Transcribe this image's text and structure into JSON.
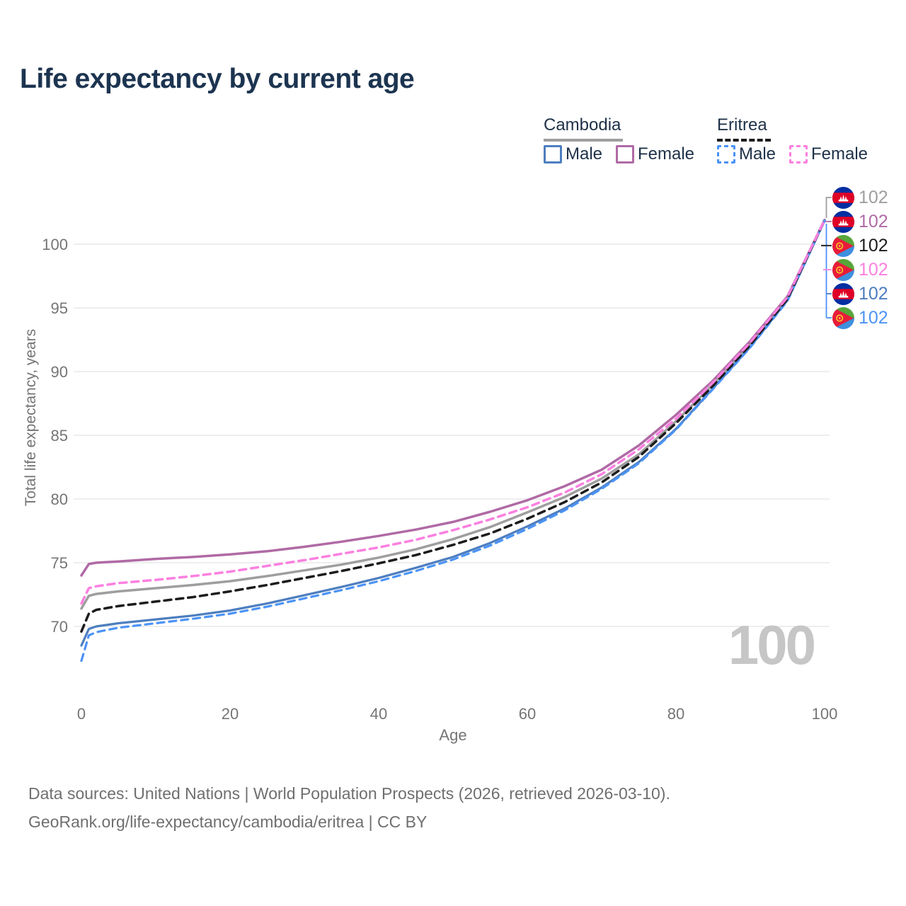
{
  "title": "Life expectancy by current age",
  "legend": {
    "groups": [
      {
        "label": "Cambodia",
        "line_style": "solid",
        "underline_color": "#9e9e9e",
        "items": [
          {
            "label": "Male",
            "color": "#4d7ebf"
          },
          {
            "label": "Female",
            "color": "#b06aa5"
          }
        ]
      },
      {
        "label": "Eritrea",
        "line_style": "dashed",
        "underline_color": "#1c1c1c",
        "items": [
          {
            "label": "Male",
            "color": "#4b93f5"
          },
          {
            "label": "Female",
            "color": "#fb80e0"
          }
        ]
      }
    ]
  },
  "watermark": "100",
  "end_labels": [
    {
      "country": "Cambodia",
      "flag": "cambodia",
      "value": "102",
      "color": "#9e9e9e"
    },
    {
      "country": "Cambodia",
      "flag": "cambodia",
      "value": "102",
      "color": "#b06aa5"
    },
    {
      "country": "Eritrea",
      "flag": "eritrea",
      "value": "102",
      "color": "#1c1c1c"
    },
    {
      "country": "Eritrea",
      "flag": "eritrea",
      "value": "102",
      "color": "#fb80e0"
    },
    {
      "country": "Cambodia",
      "flag": "cambodia",
      "value": "102",
      "color": "#4d7ebf"
    },
    {
      "country": "Eritrea",
      "flag": "eritrea",
      "value": "102",
      "color": "#4b93f5"
    }
  ],
  "footer": {
    "line1": "Data sources: United Nations | World Population Prospects (2026, retrieved 2026-03-10).",
    "line2": "GeoRank.org/life-expectancy/cambodia/eritrea | CC BY"
  },
  "chart_data": {
    "type": "line",
    "title": "Life expectancy by current age",
    "xlabel": "Age",
    "ylabel": "Total life expectancy, years",
    "xlim": [
      0,
      100
    ],
    "ylim": [
      66.5,
      103.5
    ],
    "x_ticks": [
      0,
      20,
      40,
      60,
      80,
      100
    ],
    "y_ticks": [
      70,
      75,
      80,
      85,
      90,
      95,
      100
    ],
    "grid": "horizontal",
    "legend_position": "top-right",
    "x": [
      0,
      1,
      2,
      5,
      10,
      15,
      20,
      25,
      30,
      35,
      40,
      45,
      50,
      55,
      60,
      65,
      70,
      75,
      80,
      85,
      90,
      95,
      100
    ],
    "series": [
      {
        "name": "Cambodia Both sexes",
        "country": "Cambodia",
        "sex": "Both",
        "dash": false,
        "color": "#9e9e9e",
        "width": 3.5,
        "values": [
          71.4,
          72.4,
          72.55,
          72.75,
          73.0,
          73.25,
          73.55,
          73.95,
          74.4,
          74.85,
          75.4,
          76.05,
          76.85,
          77.8,
          78.95,
          80.15,
          81.6,
          83.5,
          86.1,
          89.0,
          92.2,
          95.75,
          101.9
        ]
      },
      {
        "name": "Cambodia Male",
        "country": "Cambodia",
        "sex": "Male",
        "dash": false,
        "color": "#4d7ebf",
        "width": 3.2,
        "values": [
          68.5,
          69.8,
          70.0,
          70.25,
          70.55,
          70.85,
          71.25,
          71.8,
          72.45,
          73.1,
          73.8,
          74.6,
          75.45,
          76.55,
          77.85,
          79.25,
          80.9,
          82.9,
          85.5,
          88.7,
          91.95,
          95.6,
          101.85
        ]
      },
      {
        "name": "Cambodia Female",
        "country": "Cambodia",
        "sex": "Female",
        "dash": false,
        "color": "#b06aa5",
        "width": 3.5,
        "values": [
          74.0,
          74.9,
          75.0,
          75.1,
          75.3,
          75.45,
          75.65,
          75.9,
          76.25,
          76.65,
          77.1,
          77.6,
          78.2,
          79.0,
          79.9,
          81.0,
          82.3,
          84.2,
          86.6,
          89.3,
          92.4,
          95.9,
          101.9
        ]
      },
      {
        "name": "Eritrea Male",
        "country": "Eritrea",
        "sex": "Male",
        "dash": true,
        "color": "#4b93f5",
        "width": 3.2,
        "values": [
          67.3,
          69.3,
          69.55,
          69.9,
          70.25,
          70.6,
          71.0,
          71.55,
          72.2,
          72.85,
          73.55,
          74.35,
          75.25,
          76.35,
          77.65,
          79.1,
          80.8,
          82.8,
          85.45,
          88.65,
          91.9,
          95.55,
          101.85
        ]
      },
      {
        "name": "Eritrea Both sexes",
        "country": "Eritrea",
        "sex": "Both",
        "dash": true,
        "color": "#1c1c1c",
        "width": 3.5,
        "values": [
          69.6,
          71.0,
          71.3,
          71.6,
          71.95,
          72.3,
          72.75,
          73.25,
          73.8,
          74.35,
          74.95,
          75.6,
          76.4,
          77.3,
          78.45,
          79.75,
          81.3,
          83.3,
          85.95,
          88.9,
          92.1,
          95.7,
          101.9
        ]
      },
      {
        "name": "Eritrea Female",
        "country": "Eritrea",
        "sex": "Female",
        "dash": true,
        "color": "#fb80e0",
        "width": 3.5,
        "values": [
          71.8,
          73.0,
          73.15,
          73.4,
          73.65,
          73.95,
          74.3,
          74.75,
          75.2,
          75.7,
          76.2,
          76.8,
          77.55,
          78.4,
          79.35,
          80.5,
          81.95,
          83.9,
          86.3,
          89.15,
          92.3,
          95.85,
          101.9
        ]
      }
    ],
    "end_value_label": "102"
  }
}
